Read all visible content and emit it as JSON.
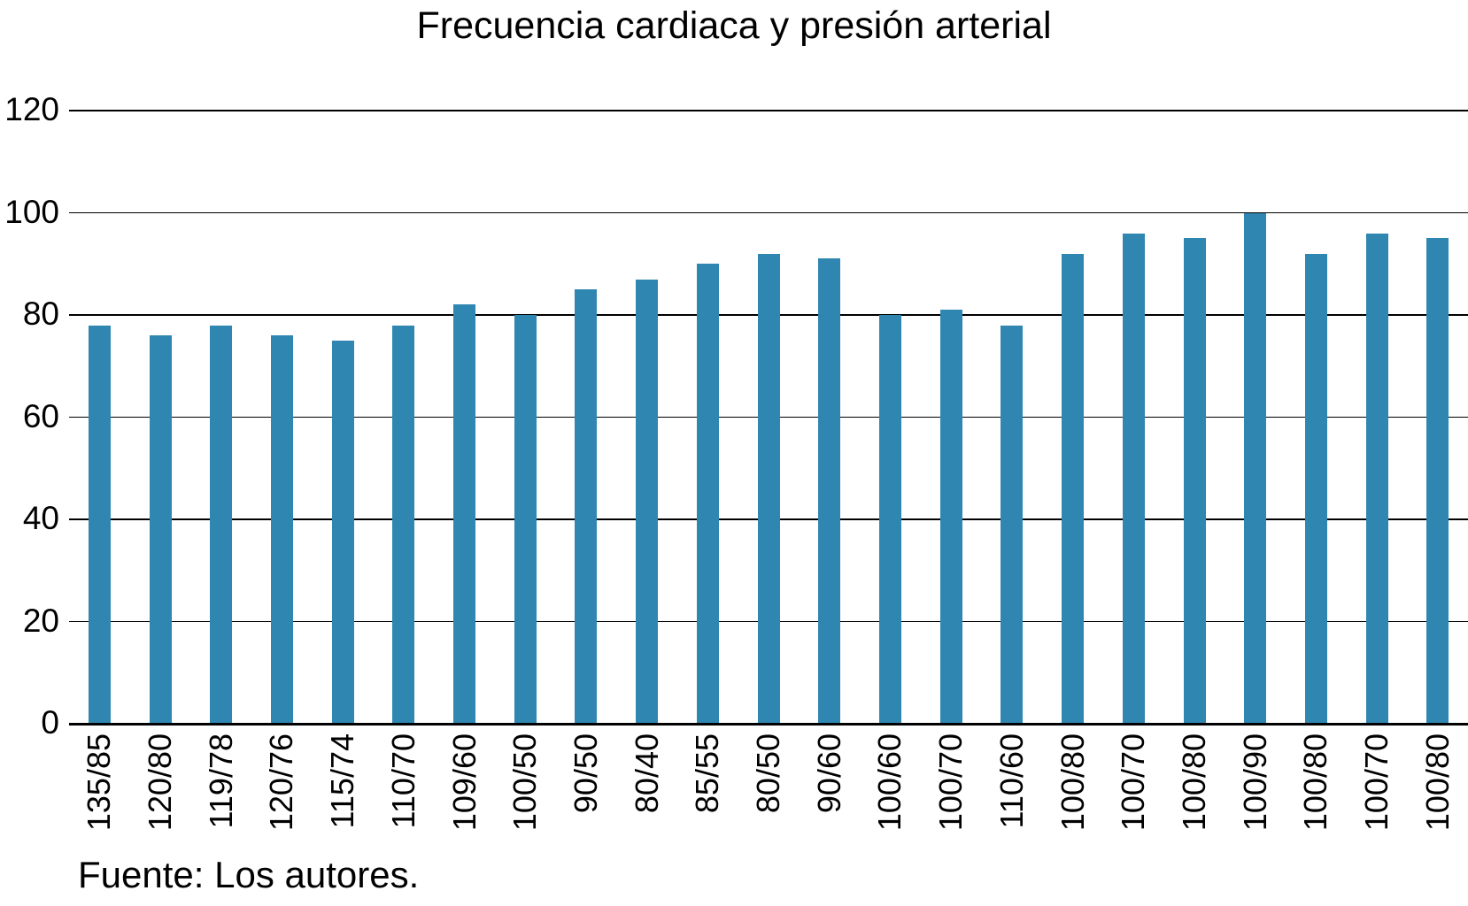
{
  "title": "Frecuencia cardiaca y presión arterial",
  "source_note": "Fuente: Los autores.",
  "colors": {
    "bar": "#2F86B0",
    "grid": "#000000",
    "text": "#000000",
    "background": "#FFFFFF"
  },
  "chart_data": {
    "type": "bar",
    "title": "Frecuencia cardiaca y presión arterial",
    "categories": [
      "135/85",
      "120/80",
      "119/78",
      "120/76",
      "115/74",
      "110/70",
      "109/60",
      "100/50",
      "90/50",
      "80/40",
      "85/55",
      "80/50",
      "90/60",
      "100/60",
      "100/70",
      "110/60",
      "100/80",
      "100/70",
      "100/80",
      "100/90",
      "100/80",
      "100/70",
      "100/80"
    ],
    "values": [
      78,
      76,
      78,
      76,
      75,
      78,
      82,
      80,
      85,
      87,
      90,
      92,
      91,
      80,
      81,
      78,
      92,
      96,
      95,
      100,
      92,
      96,
      95
    ],
    "xlabel": "",
    "ylabel": "",
    "ylim": [
      0,
      120
    ],
    "yticks": [
      0,
      20,
      40,
      60,
      80,
      100,
      120
    ],
    "grid": true,
    "legend": false,
    "bar_color": "#2F86B0",
    "x_tick_rotation_deg": 90,
    "source_note": "Fuente: Los autores."
  }
}
